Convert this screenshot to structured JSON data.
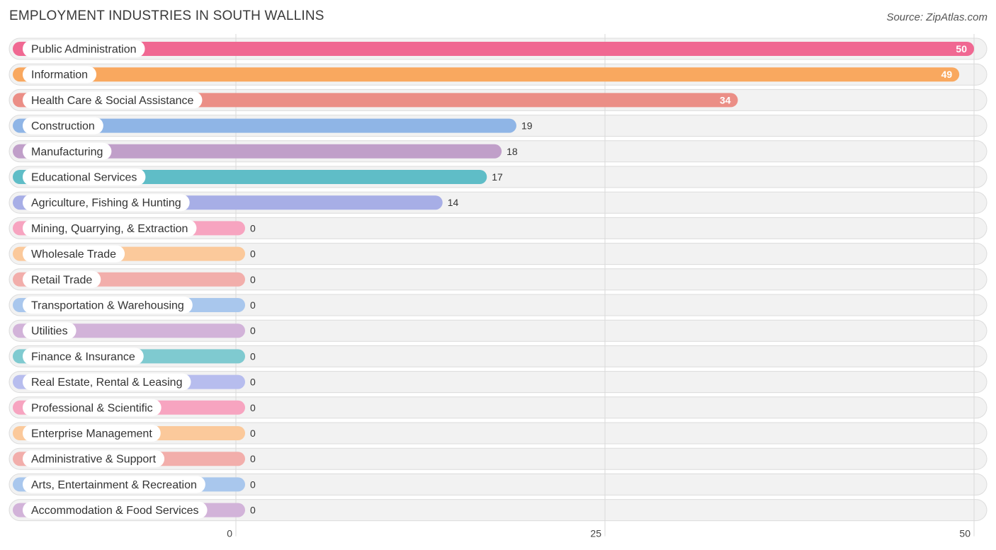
{
  "chart_data": {
    "type": "bar",
    "orientation": "horizontal",
    "title": "EMPLOYMENT INDUSTRIES IN SOUTH WALLINS",
    "source": "Source: ZipAtlas.com",
    "xlim": [
      0,
      50
    ],
    "ticks": [
      0,
      25,
      50
    ],
    "grid": true,
    "categories": [
      "Public Administration",
      "Information",
      "Health Care & Social Assistance",
      "Construction",
      "Manufacturing",
      "Educational Services",
      "Agriculture, Fishing & Hunting",
      "Mining, Quarrying, & Extraction",
      "Wholesale Trade",
      "Retail Trade",
      "Transportation & Warehousing",
      "Utilities",
      "Finance & Insurance",
      "Real Estate, Rental & Leasing",
      "Professional & Scientific",
      "Enterprise Management",
      "Administrative & Support",
      "Arts, Entertainment & Recreation",
      "Accommodation & Food Services"
    ],
    "values": [
      50,
      49,
      34,
      19,
      18,
      17,
      14,
      0,
      0,
      0,
      0,
      0,
      0,
      0,
      0,
      0,
      0,
      0,
      0
    ],
    "colors": [
      "#f06892",
      "#f9a85f",
      "#eb8e86",
      "#8fb5e6",
      "#c09fc9",
      "#5fbdc7",
      "#a7aee6",
      "#f7a4c0",
      "#fbc99b",
      "#f2aeab",
      "#a9c7ed",
      "#d2b3d9",
      "#7fcad0",
      "#b7bdee",
      "#f7a4c0",
      "#fbc99b",
      "#f2aeab",
      "#a9c7ed",
      "#d2b3d9"
    ]
  }
}
